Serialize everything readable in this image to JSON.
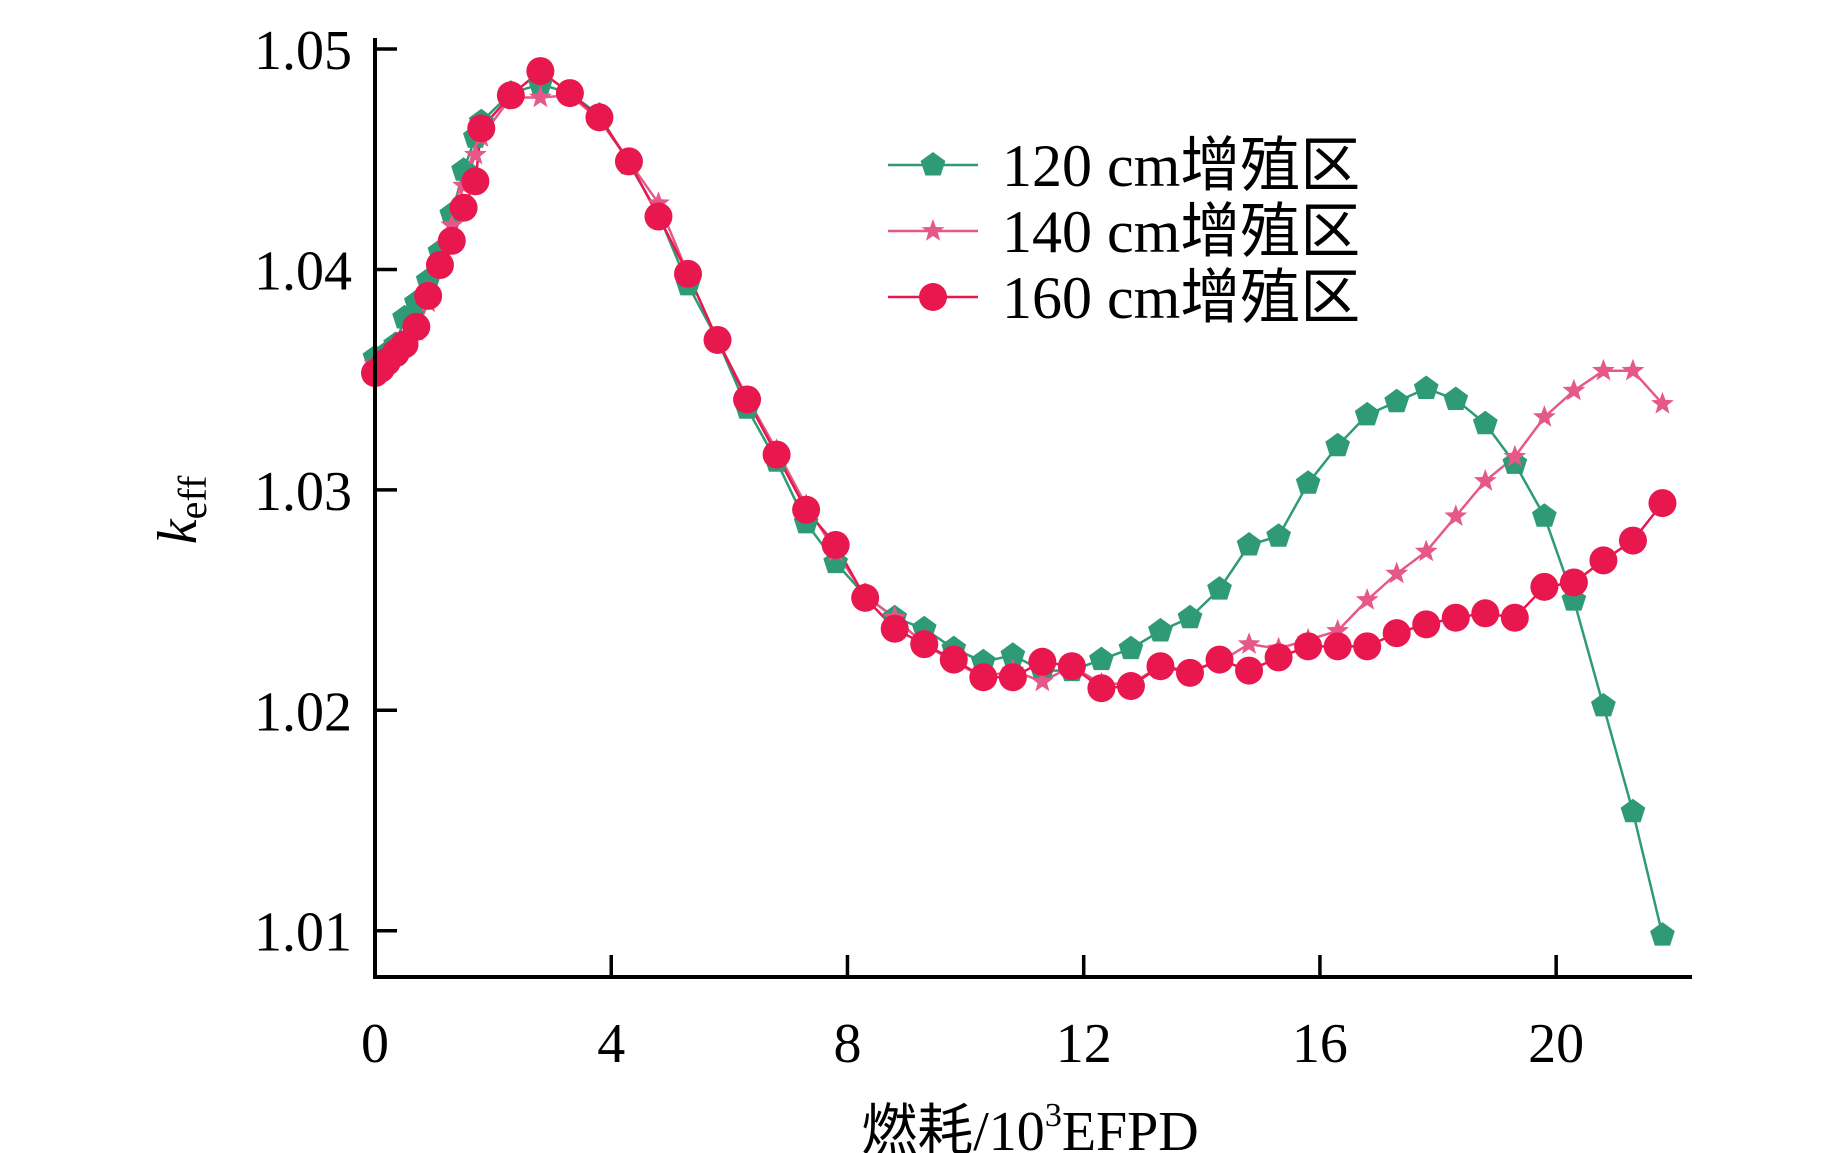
{
  "chart_data": {
    "type": "line",
    "xlabel": "燃耗/10³EFPD",
    "xlabel_parts": {
      "main": "燃耗/10",
      "sup": "3",
      "unit": "EFPD"
    },
    "ylabel": "k_eff",
    "ylabel_parts": {
      "main": "k",
      "sub": "eff"
    },
    "xlim": [
      0,
      22.3
    ],
    "ylim": [
      1.0079,
      1.0505
    ],
    "xticks": [
      0,
      4,
      8,
      12,
      16,
      20
    ],
    "xtick_labels": [
      "0",
      "4",
      "8",
      "12",
      "16",
      "20"
    ],
    "yticks": [
      1.01,
      1.02,
      1.03,
      1.04,
      1.05
    ],
    "ytick_labels": [
      "1.01",
      "1.02",
      "1.03",
      "1.04",
      "1.05"
    ],
    "grid": false,
    "legend_position": "top-center",
    "series": [
      {
        "name": "120 cm增殖区",
        "color": "#2e9b76",
        "marker": "pentagon",
        "x": [
          0,
          0.1,
          0.2,
          0.35,
          0.5,
          0.7,
          0.9,
          1.1,
          1.3,
          1.5,
          1.7,
          1.8,
          2.3,
          2.8,
          3.3,
          3.8,
          4.3,
          4.8,
          5.3,
          5.8,
          6.3,
          6.8,
          7.3,
          7.8,
          8.3,
          8.8,
          9.3,
          9.8,
          10.3,
          10.8,
          11.3,
          11.8,
          12.3,
          12.8,
          13.3,
          13.8,
          14.3,
          14.8,
          15.3,
          15.8,
          16.3,
          16.8,
          17.3,
          17.8,
          18.3,
          18.8,
          19.3,
          19.8,
          20.3,
          20.8,
          21.3,
          21.8
        ],
        "y": [
          1.036,
          1.0357,
          1.0362,
          1.0366,
          1.0378,
          1.0385,
          1.0395,
          1.0408,
          1.0425,
          1.0445,
          1.046,
          1.0467,
          1.048,
          1.0484,
          1.048,
          1.047,
          1.0448,
          1.0425,
          1.0393,
          1.0368,
          1.0337,
          1.0313,
          1.0285,
          1.0267,
          1.0252,
          1.0242,
          1.0237,
          1.0228,
          1.0222,
          1.0225,
          1.0218,
          1.0218,
          1.0223,
          1.0228,
          1.0236,
          1.0242,
          1.0255,
          1.0275,
          1.0279,
          1.0303,
          1.032,
          1.0334,
          1.034,
          1.0346,
          1.0341,
          1.033,
          1.0312,
          1.0288,
          1.025,
          1.0202,
          1.0154,
          1.0098
        ]
      },
      {
        "name": "140 cm增殖区",
        "color": "#e7588a",
        "marker": "star",
        "x": [
          0,
          0.1,
          0.2,
          0.35,
          0.5,
          0.7,
          0.9,
          1.1,
          1.3,
          1.5,
          1.7,
          1.8,
          2.3,
          2.8,
          3.3,
          3.8,
          4.3,
          4.8,
          5.3,
          5.8,
          6.3,
          6.8,
          7.3,
          7.8,
          8.3,
          8.8,
          9.3,
          9.8,
          10.3,
          10.8,
          11.3,
          11.8,
          12.3,
          12.8,
          13.3,
          13.8,
          14.3,
          14.8,
          15.3,
          15.8,
          16.3,
          16.8,
          17.3,
          17.8,
          18.3,
          18.8,
          19.3,
          19.8,
          20.3,
          20.8,
          21.3,
          21.8
        ],
        "y": [
          1.0357,
          1.0355,
          1.0358,
          1.0362,
          1.0365,
          1.0372,
          1.0385,
          1.0402,
          1.042,
          1.0438,
          1.0452,
          1.046,
          1.0478,
          1.0478,
          1.0479,
          1.0468,
          1.0449,
          1.043,
          1.0398,
          1.0368,
          1.0342,
          1.0318,
          1.0293,
          1.0272,
          1.0252,
          1.0242,
          1.023,
          1.0222,
          1.0215,
          1.0218,
          1.0213,
          1.022,
          1.0212,
          1.0212,
          1.022,
          1.0218,
          1.0222,
          1.023,
          1.0228,
          1.0232,
          1.0236,
          1.025,
          1.0262,
          1.0272,
          1.0288,
          1.0304,
          1.0315,
          1.0333,
          1.0345,
          1.0354,
          1.0354,
          1.0339
        ]
      },
      {
        "name": "160 cm增殖区",
        "color": "#e8174e",
        "marker": "circle",
        "x": [
          0,
          0.1,
          0.2,
          0.35,
          0.5,
          0.7,
          0.9,
          1.1,
          1.3,
          1.5,
          1.7,
          1.8,
          2.3,
          2.8,
          3.3,
          3.8,
          4.3,
          4.8,
          5.3,
          5.8,
          6.3,
          6.8,
          7.3,
          7.8,
          8.3,
          8.8,
          9.3,
          9.8,
          10.3,
          10.8,
          11.3,
          11.8,
          12.3,
          12.8,
          13.3,
          13.8,
          14.3,
          14.8,
          15.3,
          15.8,
          16.3,
          16.8,
          17.3,
          17.8,
          18.3,
          18.8,
          19.3,
          19.8,
          20.3,
          20.8,
          21.3,
          21.8
        ],
        "y": [
          1.0353,
          1.0355,
          1.0358,
          1.0362,
          1.0366,
          1.0374,
          1.0388,
          1.0402,
          1.0413,
          1.0428,
          1.044,
          1.0464,
          1.0479,
          1.049,
          1.048,
          1.0469,
          1.0449,
          1.0424,
          1.0398,
          1.0368,
          1.0341,
          1.0316,
          1.0291,
          1.0275,
          1.0251,
          1.0237,
          1.023,
          1.0223,
          1.0215,
          1.0215,
          1.0222,
          1.022,
          1.021,
          1.0211,
          1.022,
          1.0217,
          1.0223,
          1.0218,
          1.0224,
          1.0229,
          1.0229,
          1.0229,
          1.0235,
          1.0239,
          1.0242,
          1.0244,
          1.0242,
          1.0256,
          1.0258,
          1.0268,
          1.0277,
          1.0294
        ]
      }
    ]
  }
}
